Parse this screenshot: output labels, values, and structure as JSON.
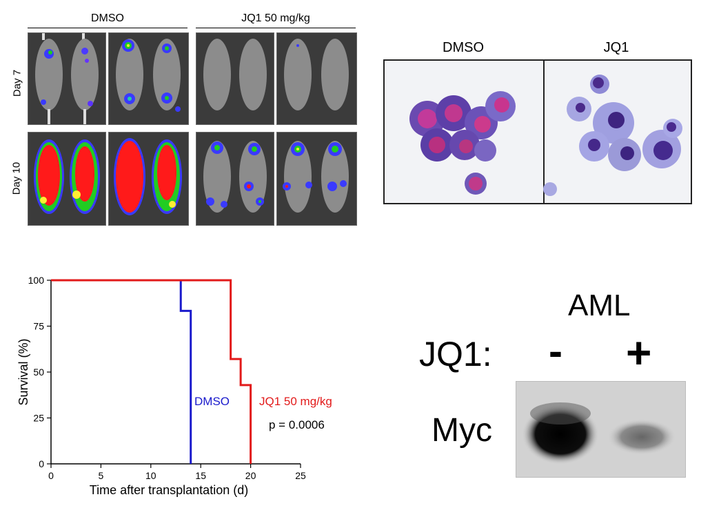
{
  "bli_panel": {
    "group_dmso": "DMSO",
    "group_jq1": "JQ1 50 mg/kg",
    "rows": [
      "Day 7",
      "Day 10"
    ]
  },
  "histology": {
    "left": "DMSO",
    "right": "JQ1"
  },
  "chart_data": {
    "type": "line",
    "step": true,
    "xlabel": "Time after transplantation (d)",
    "ylabel": "Survival (%)",
    "xlim": [
      0,
      25
    ],
    "ylim": [
      0,
      100
    ],
    "xticks": [
      "0",
      "5",
      "10",
      "15",
      "20",
      "25"
    ],
    "yticks": [
      "0",
      "25",
      "50",
      "75",
      "100"
    ],
    "series": [
      {
        "name": "DMSO",
        "color": "#1a1acc",
        "x": [
          0,
          13,
          13,
          14,
          14
        ],
        "y": [
          100,
          100,
          83.3,
          83.3,
          0
        ]
      },
      {
        "name": "JQ1 50 mg/kg",
        "color": "#e21a1a",
        "x": [
          0,
          18,
          18,
          19,
          19,
          20,
          20
        ],
        "y": [
          100,
          100,
          57.1,
          57.1,
          42.9,
          42.9,
          0
        ]
      }
    ],
    "annotation": "p = 0.0006"
  },
  "western": {
    "title": "AML",
    "treatment_label": "JQ1:",
    "minus": "-",
    "plus": "+",
    "protein": "Myc"
  }
}
